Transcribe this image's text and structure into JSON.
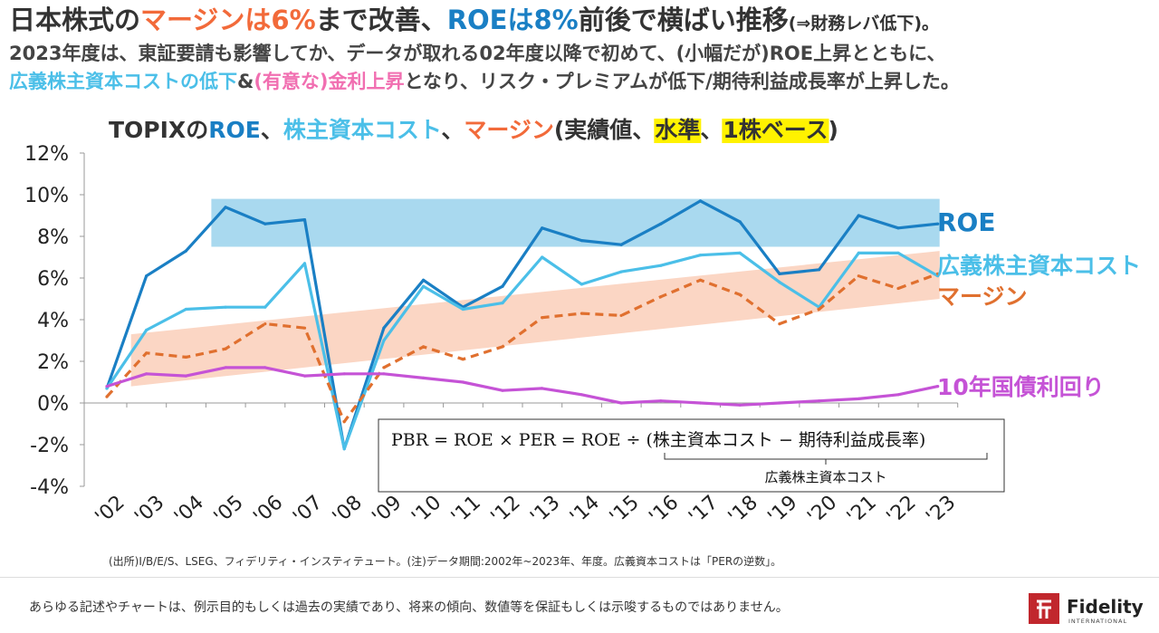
{
  "header": {
    "line1": [
      "日本株式の",
      "マージンは6%",
      "まで改善、",
      "ROEは8%",
      "前後で横ばい推移",
      "(⇒財務レバ低下)。"
    ],
    "line2": "2023年度は、東証要請も影響してか、データが取れる02年度以降で初めて、(小幅だが)ROE上昇とともに、",
    "line3": [
      "広義株主資本コストの低下",
      "&",
      "(有意な)金利上昇",
      "となり、リスク・プレミアムが低下/期待利益成長率が上昇した。"
    ]
  },
  "chart_data": {
    "type": "line",
    "title": [
      "TOPIXの",
      "ROE",
      "、",
      "株主資本コスト",
      "、",
      "マージン",
      "(実績値、",
      "水準",
      "、",
      "1株ベース",
      ")"
    ],
    "categories": [
      "'02",
      "'03",
      "'04",
      "'05",
      "'06",
      "'07",
      "'08",
      "'09",
      "'10",
      "'11",
      "'12",
      "'13",
      "'14",
      "'15",
      "'16",
      "'17",
      "'18",
      "'19",
      "'20",
      "'21",
      "'22",
      "'23"
    ],
    "ylim": [
      -4,
      12
    ],
    "yticks": [
      -4,
      -2,
      0,
      2,
      4,
      6,
      8,
      10,
      12
    ],
    "ytick_labels": [
      "-4%",
      "-2%",
      "0%",
      "2%",
      "4%",
      "6%",
      "8%",
      "10%",
      "12%"
    ],
    "series": [
      {
        "name": "ROE",
        "color": "#1a7fc4",
        "style": "solid",
        "values": [
          0.7,
          6.1,
          7.3,
          9.4,
          8.6,
          8.8,
          -2.2,
          3.6,
          5.9,
          4.6,
          5.6,
          8.4,
          7.8,
          7.6,
          8.6,
          9.7,
          8.7,
          6.2,
          6.4,
          9.0,
          8.4,
          8.6
        ]
      },
      {
        "name": "広義株主資本コスト",
        "color": "#4bbfe8",
        "style": "solid",
        "values": [
          0.7,
          3.5,
          4.5,
          4.6,
          4.6,
          6.7,
          -2.2,
          3.0,
          5.6,
          4.5,
          4.8,
          7.0,
          5.7,
          6.3,
          6.6,
          7.1,
          7.2,
          5.8,
          4.6,
          7.2,
          7.2,
          6.1
        ]
      },
      {
        "name": "マージン",
        "color": "#e0702f",
        "style": "dashed",
        "values": [
          0.3,
          2.4,
          2.2,
          2.6,
          3.8,
          3.6,
          -0.9,
          1.7,
          2.7,
          2.1,
          2.7,
          4.1,
          4.3,
          4.2,
          5.1,
          5.9,
          5.2,
          3.8,
          4.5,
          6.1,
          5.5,
          6.2
        ]
      },
      {
        "name": "10年国債利回り",
        "color": "#c553d6",
        "style": "solid",
        "values": [
          0.8,
          1.4,
          1.3,
          1.7,
          1.7,
          1.3,
          1.4,
          1.4,
          1.2,
          1.0,
          0.6,
          0.7,
          0.4,
          0.0,
          0.1,
          0.0,
          -0.1,
          0.0,
          0.1,
          0.2,
          0.4,
          0.8
        ]
      }
    ],
    "bands": [
      {
        "name": "roe-band",
        "color": "#a9d9ef",
        "x_start": "'04",
        "x_end": "'23",
        "y_low": 7.5,
        "y_high": 9.8
      },
      {
        "name": "margin-band",
        "color": "#fbd6c4",
        "x_start": "'03",
        "x_end": "'23",
        "y_left_low": 0.8,
        "y_left_high": 3.3,
        "y_right_low": 5.0,
        "y_right_high": 7.3
      }
    ],
    "formula": "PBR = ROE × PER = ROE ÷ (株主資本コスト − 期待利益成長率)",
    "brace_label": "広義株主資本コスト"
  },
  "footnote": "(出所)I/B/E/S、LSEG、フィデリティ・インスティテュート。(注)データ期間:2002年~2023年、年度。広義資本コストは「PERの逆数」。",
  "disclaimer": "あらゆる記述やチャートは、例示目的もしくは過去の実績であり、将来の傾向、数値等を保証もしくは示唆するものではありません。",
  "logo": {
    "name": "Fidelity",
    "sub": "INTERNATIONAL",
    "color": "#c1272d"
  }
}
